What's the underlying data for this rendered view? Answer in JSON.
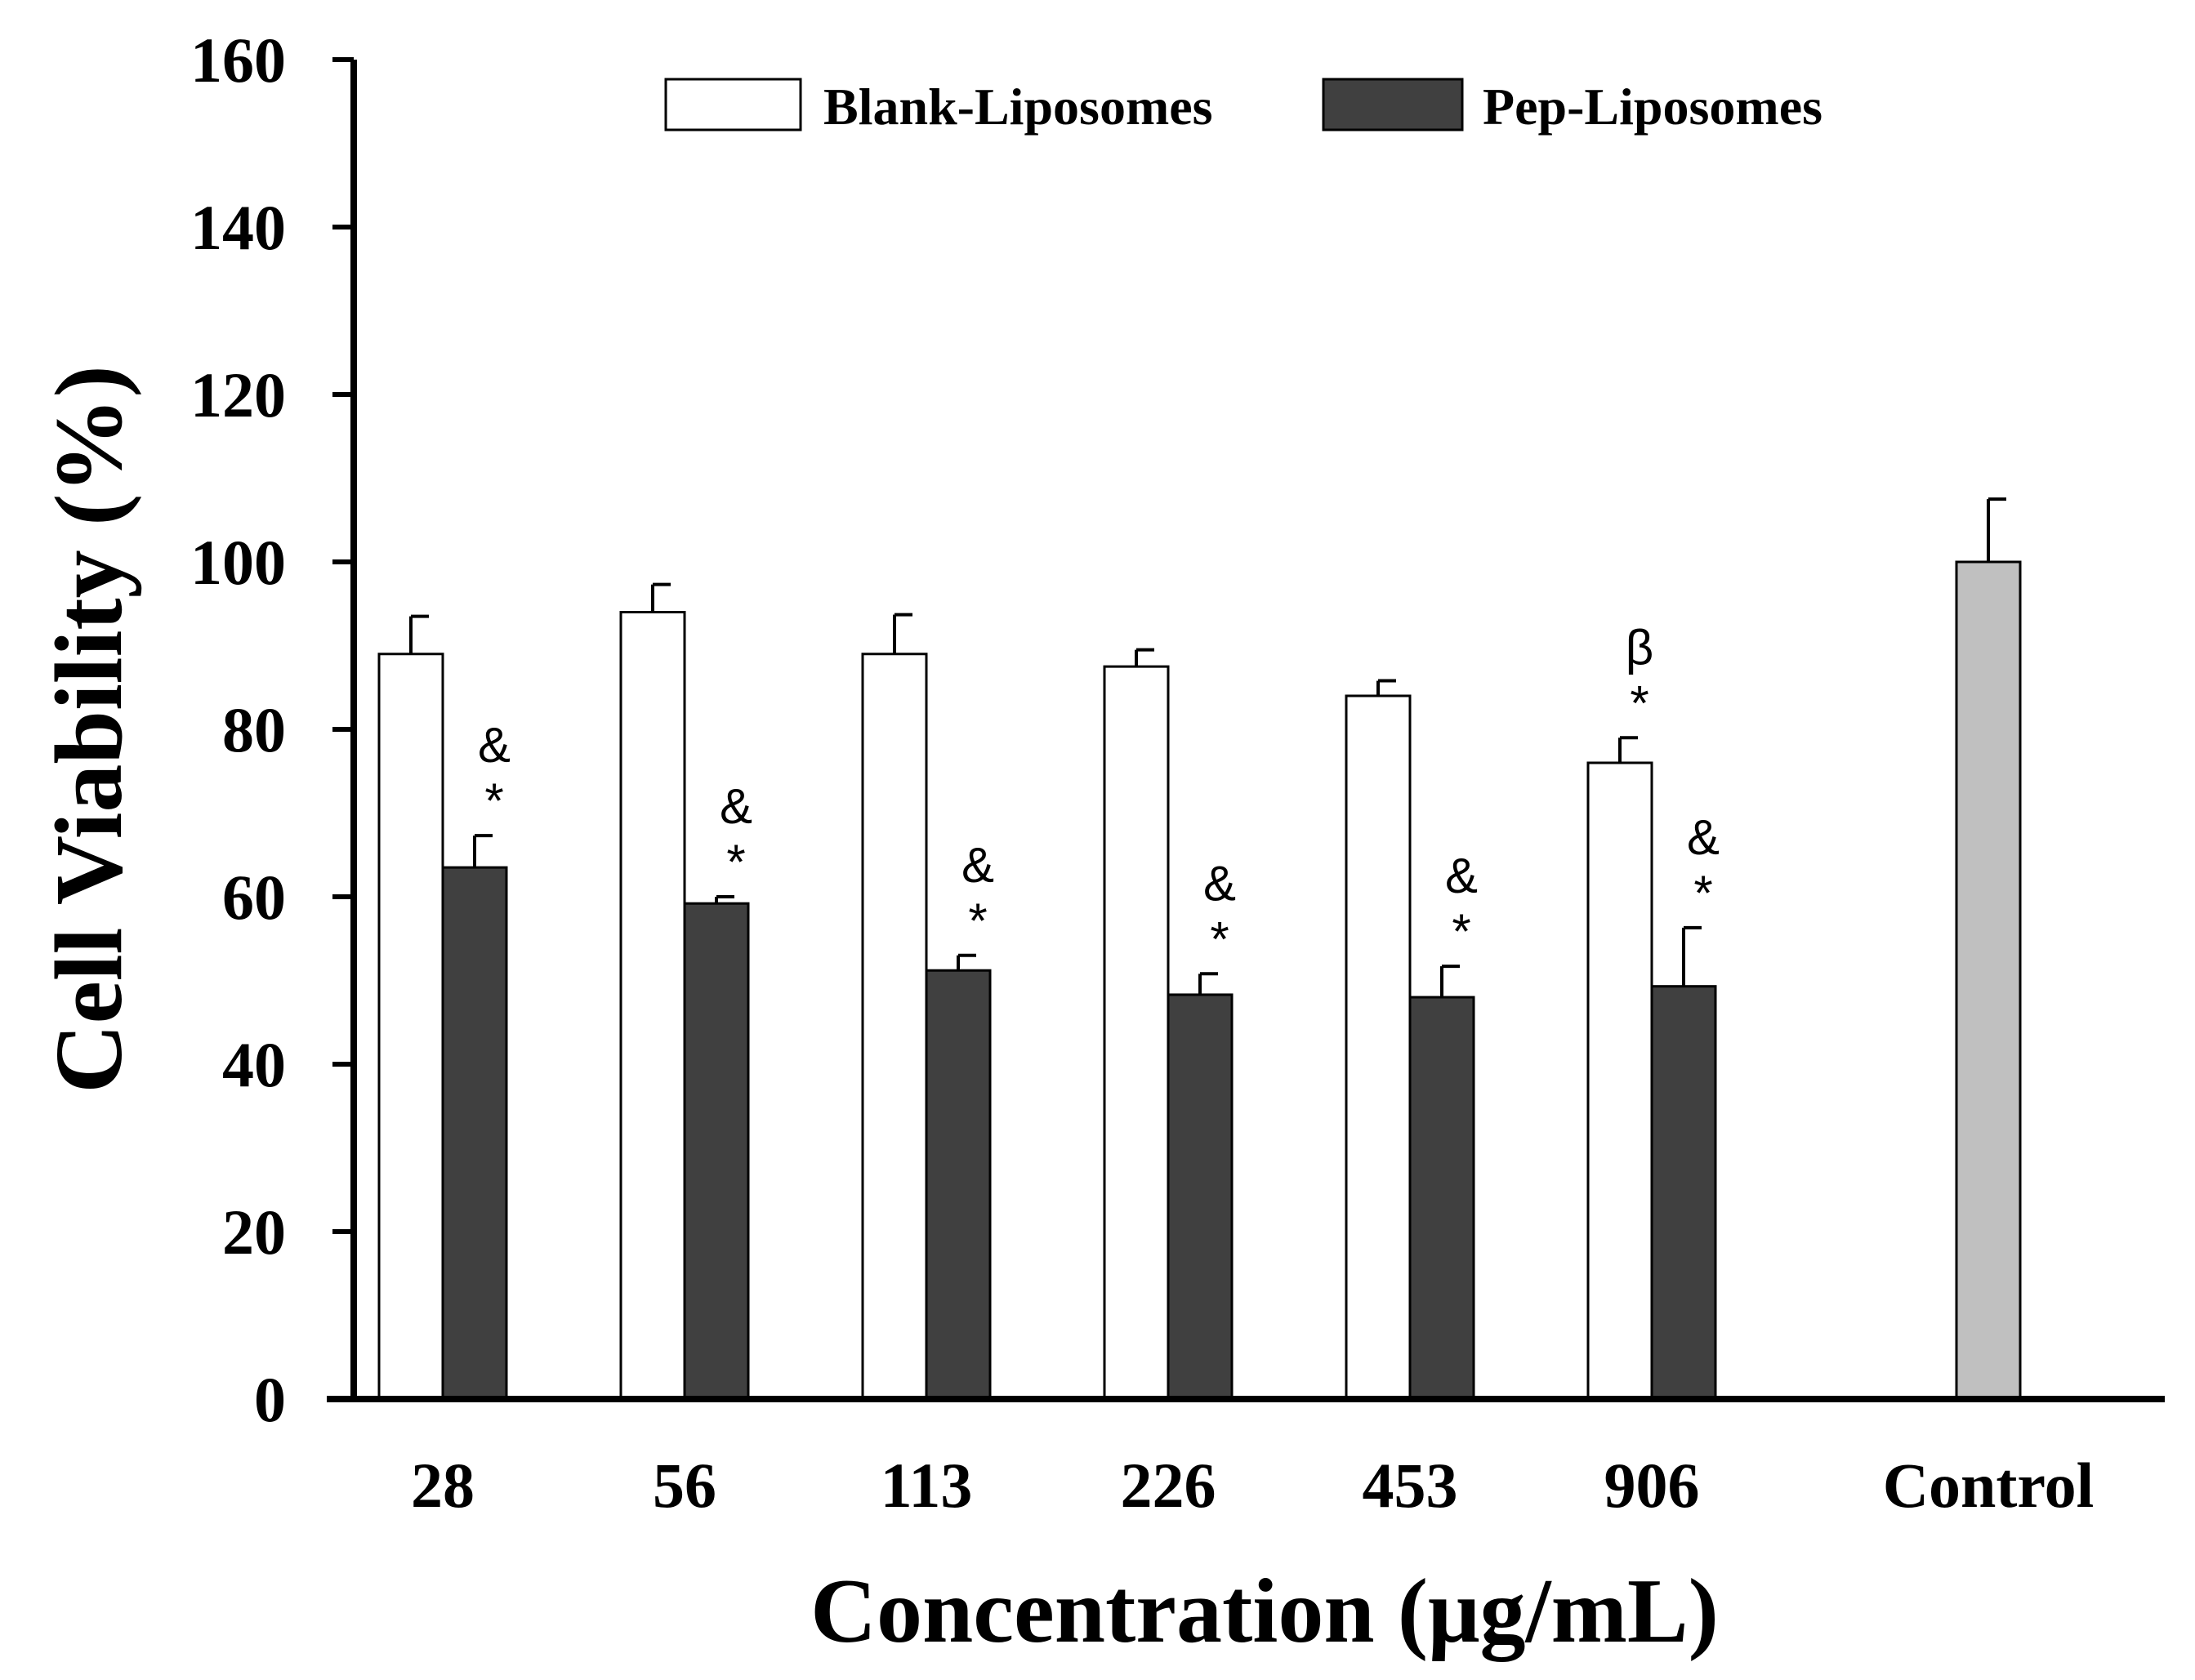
{
  "chart_data": {
    "type": "bar",
    "title": "",
    "xlabel": "Concentration (μg/mL)",
    "ylabel": "Cell Viability (%)",
    "ylim": [
      0,
      160
    ],
    "yticks": [
      0,
      20,
      40,
      60,
      80,
      100,
      120,
      140,
      160
    ],
    "categories": [
      "28",
      "56",
      "113",
      "226",
      "453",
      "906"
    ],
    "series": [
      {
        "name": "Blank-Liposomes",
        "color": "#ffffff",
        "values": [
          89,
          94,
          89,
          87.5,
          84,
          76
        ],
        "errors": [
          4.5,
          3.3,
          4.7,
          2,
          1.8,
          3
        ],
        "annotations": [
          [],
          [],
          [],
          [],
          [],
          [
            "*",
            "β"
          ]
        ]
      },
      {
        "name": "Pep-Liposomes",
        "color": "#404040",
        "values": [
          63.5,
          59.2,
          51.2,
          48.3,
          48,
          49.3
        ],
        "errors": [
          3.8,
          0.8,
          1.8,
          2.5,
          3.7,
          7
        ],
        "annotations": [
          [
            "*",
            "&"
          ],
          [
            "*",
            "&"
          ],
          [
            "*",
            "&"
          ],
          [
            "*",
            "&"
          ],
          [
            "*",
            "&"
          ],
          [
            "*",
            "&"
          ]
        ]
      }
    ],
    "control": {
      "label": "Control",
      "value": 100,
      "error": 7.5,
      "color": "#c0c0c0"
    },
    "legend_position": "top-center"
  }
}
